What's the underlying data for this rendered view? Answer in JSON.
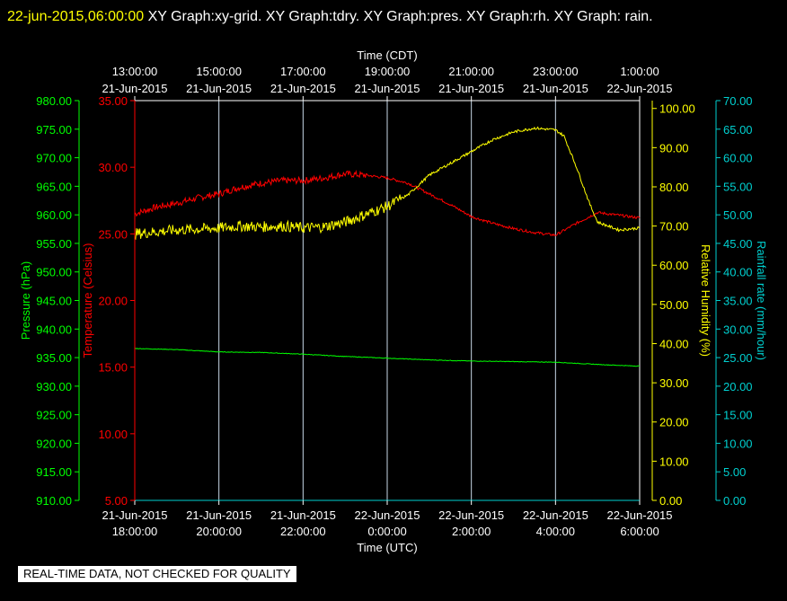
{
  "header": {
    "timestamp": "22-jun-2015,06:00:00",
    "text": "  XY Graph:xy-grid.  XY Graph:tdry.  XY Graph:pres.  XY Graph:rh.  XY Graph: rain."
  },
  "footer": {
    "qc_notice": "REAL-TIME DATA, NOT CHECKED FOR QUALITY"
  },
  "chart_data": {
    "type": "line",
    "x_unit": "hours",
    "x_bottom_label": "Time (UTC)",
    "x_top_label": "Time (CDT)",
    "x_range": [
      0,
      12
    ],
    "x_ticks_utc": [
      {
        "h": 0,
        "d": "21-Jun-2015",
        "t": "18:00:00"
      },
      {
        "h": 2,
        "d": "21-Jun-2015",
        "t": "20:00:00"
      },
      {
        "h": 4,
        "d": "21-Jun-2015",
        "t": "22:00:00"
      },
      {
        "h": 6,
        "d": "22-Jun-2015",
        "t": "0:00:00"
      },
      {
        "h": 8,
        "d": "22-Jun-2015",
        "t": "2:00:00"
      },
      {
        "h": 10,
        "d": "22-Jun-2015",
        "t": "4:00:00"
      },
      {
        "h": 12,
        "d": "22-Jun-2015",
        "t": "6:00:00"
      }
    ],
    "x_ticks_cdt": [
      {
        "h": 0,
        "t": "13:00:00",
        "d": "21-Jun-2015"
      },
      {
        "h": 2,
        "t": "15:00:00",
        "d": "21-Jun-2015"
      },
      {
        "h": 4,
        "t": "17:00:00",
        "d": "21-Jun-2015"
      },
      {
        "h": 6,
        "t": "19:00:00",
        "d": "21-Jun-2015"
      },
      {
        "h": 8,
        "t": "21:00:00",
        "d": "21-Jun-2015"
      },
      {
        "h": 10,
        "t": "23:00:00",
        "d": "21-Jun-2015"
      },
      {
        "h": 12,
        "t": "1:00:00",
        "d": "22-Jun-2015"
      }
    ],
    "axes": {
      "pressure": {
        "label": "Pressure (hPa)",
        "color": "#00ff00",
        "min": 910,
        "max": 980,
        "ticks": [
          "910.00",
          "915.00",
          "920.00",
          "925.00",
          "930.00",
          "935.00",
          "940.00",
          "945.00",
          "950.00",
          "955.00",
          "960.00",
          "965.00",
          "970.00",
          "975.00",
          "980.00"
        ]
      },
      "temperature": {
        "label": "Temperature (Celsius)",
        "color": "#ff0000",
        "min": 5,
        "max": 35,
        "ticks": [
          "5.00",
          "10.00",
          "15.00",
          "20.00",
          "25.00",
          "30.00",
          "35.00"
        ]
      },
      "humidity": {
        "label": "Relative Humidity (%)",
        "color": "#ffff00",
        "min": 0,
        "max": 102,
        "ticks": [
          "0.00",
          "10.00",
          "20.00",
          "30.00",
          "40.00",
          "50.00",
          "60.00",
          "70.00",
          "80.00",
          "90.00",
          "100.00"
        ]
      },
      "rain": {
        "label": "Rainfall rate (mm/hour)",
        "color": "#00d0d0",
        "min": 0,
        "max": 70,
        "ticks": [
          "0.00",
          "5.00",
          "10.00",
          "15.00",
          "20.00",
          "25.00",
          "30.00",
          "35.00",
          "40.00",
          "45.00",
          "50.00",
          "55.00",
          "60.00",
          "65.00",
          "70.00"
        ]
      }
    },
    "series": [
      {
        "name": "tdry",
        "axis": "temperature",
        "color": "#ff0000",
        "x": [
          0,
          0.5,
          1,
          1.5,
          2,
          2.5,
          3,
          3.5,
          4,
          4.5,
          5,
          5.5,
          6,
          6.5,
          7,
          7.5,
          8,
          8.5,
          9,
          9.5,
          10,
          10.5,
          11,
          11.5,
          12
        ],
        "y": [
          26.5,
          27.0,
          27.3,
          27.7,
          28.0,
          28.5,
          28.8,
          29.0,
          29.0,
          29.2,
          29.5,
          29.4,
          29.2,
          28.8,
          28.0,
          27.2,
          26.3,
          25.8,
          25.4,
          25.1,
          24.9,
          25.8,
          26.6,
          26.4,
          26.2
        ]
      },
      {
        "name": "pres",
        "axis": "pressure",
        "color": "#00ff00",
        "x": [
          0,
          1,
          2,
          3,
          4,
          5,
          6,
          7,
          8,
          9,
          10,
          11,
          12
        ],
        "y": [
          936.6,
          936.4,
          936.0,
          935.9,
          935.6,
          935.2,
          934.9,
          934.6,
          934.4,
          934.3,
          934.2,
          933.8,
          933.5
        ]
      },
      {
        "name": "rh",
        "axis": "humidity",
        "color": "#ffff00",
        "x": [
          0,
          0.5,
          1,
          1.5,
          2,
          2.5,
          3,
          3.5,
          4,
          4.5,
          5,
          5.5,
          6,
          6.5,
          7,
          7.5,
          8,
          8.5,
          9,
          9.5,
          10,
          10.2,
          10.5,
          10.8,
          11,
          11.5,
          12
        ],
        "y": [
          68.0,
          68.5,
          69.0,
          69.2,
          69.5,
          70.0,
          69.8,
          70.0,
          69.5,
          69.8,
          71.0,
          73.0,
          75.0,
          78.0,
          83.0,
          86.0,
          89.0,
          92.0,
          94.0,
          95.0,
          94.5,
          93.0,
          85.0,
          76.0,
          71.0,
          69.0,
          69.5
        ]
      },
      {
        "name": "rain",
        "axis": "rain",
        "color": "#00d0d0",
        "x": [
          0,
          12
        ],
        "y": [
          0,
          0
        ]
      }
    ]
  }
}
